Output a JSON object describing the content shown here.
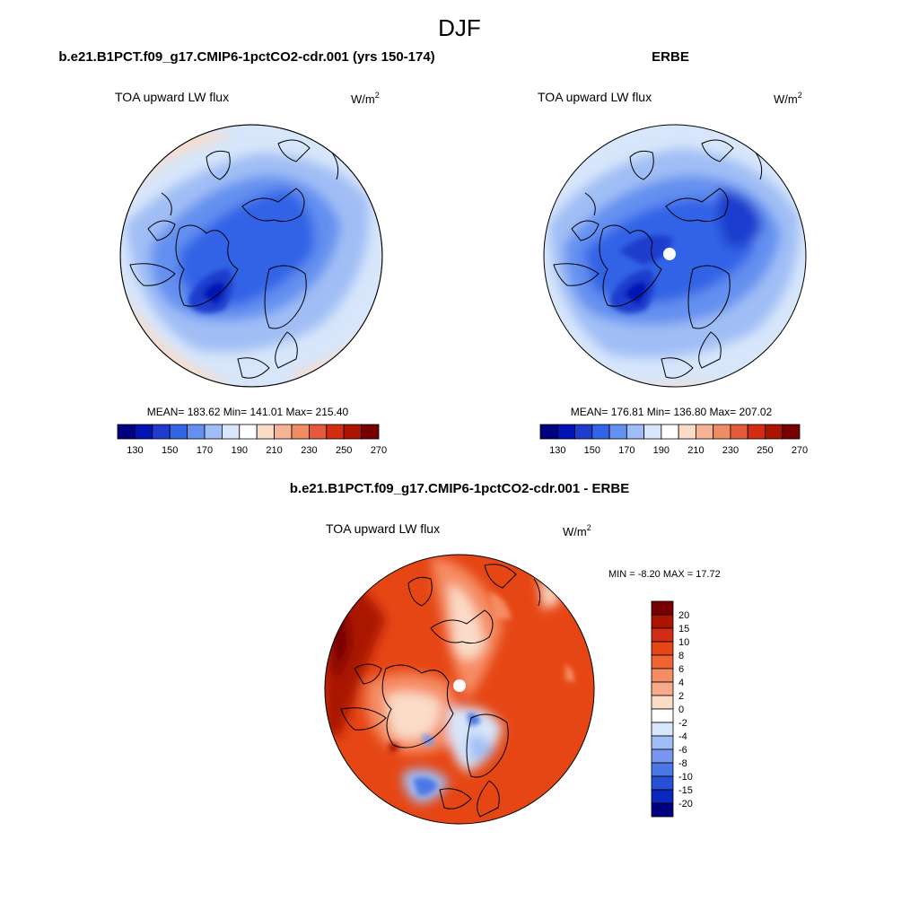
{
  "figure": {
    "season": "DJF"
  },
  "panels": [
    {
      "id": "model",
      "heading": "b.e21.B1PCT.f09_g17.CMIP6-1pctCO2-cdr.001 (yrs 150-174)",
      "variable": "TOA upward LW flux",
      "units_base": "W/m",
      "units_exp": "2",
      "stats": "MEAN= 183.62  Min= 141.01  Max= 215.40",
      "missing_pole": false
    },
    {
      "id": "obs",
      "heading": "ERBE",
      "variable": "TOA upward LW flux",
      "units_base": "W/m",
      "units_exp": "2",
      "stats": "MEAN= 176.81  Min= 136.80  Max= 207.02",
      "missing_pole": true
    },
    {
      "id": "diff",
      "heading": "b.e21.B1PCT.f09_g17.CMIP6-1pctCO2-cdr.001 - ERBE",
      "variable": "TOA upward LW flux",
      "units_base": "W/m",
      "units_exp": "2",
      "stats": "MIN =  -8.20 MAX =  17.72",
      "missing_pole": true
    }
  ],
  "colorbar_abs": {
    "labels": [
      "130",
      "150",
      "170",
      "190",
      "210",
      "230",
      "250",
      "270"
    ],
    "colors": [
      "#000080",
      "#0014b4",
      "#1e3ccd",
      "#3264e6",
      "#6490f0",
      "#a0bef5",
      "#d7e6fa",
      "#ffffff",
      "#fadcc8",
      "#f5b496",
      "#f08c64",
      "#e65a3c",
      "#d22d14",
      "#aa1400",
      "#780000"
    ]
  },
  "colorbar_diff": {
    "labels": [
      "20",
      "15",
      "10",
      "8",
      "6",
      "4",
      "2",
      "0",
      "-2",
      "-4",
      "-6",
      "-8",
      "-10",
      "-15",
      "-20"
    ],
    "colors": [
      "#780000",
      "#aa1400",
      "#d22d14",
      "#e64614",
      "#f06432",
      "#f58c64",
      "#f8aa8c",
      "#fadcc8",
      "#ffffff",
      "#d7e6fa",
      "#a0bef5",
      "#7896f0",
      "#4b78e6",
      "#2850d7",
      "#0a28be",
      "#000080"
    ]
  }
}
